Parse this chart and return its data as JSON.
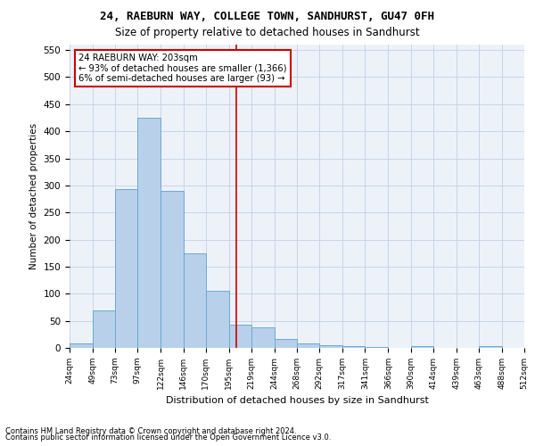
{
  "title1": "24, RAEBURN WAY, COLLEGE TOWN, SANDHURST, GU47 0FH",
  "title2": "Size of property relative to detached houses in Sandhurst",
  "xlabel": "Distribution of detached houses by size in Sandhurst",
  "ylabel": "Number of detached properties",
  "bin_edges": [
    24,
    49,
    73,
    97,
    122,
    146,
    170,
    195,
    219,
    244,
    268,
    292,
    317,
    341,
    366,
    390,
    414,
    439,
    463,
    488,
    512
  ],
  "counts": [
    8,
    70,
    293,
    425,
    290,
    175,
    105,
    43,
    38,
    17,
    8,
    5,
    4,
    2,
    0,
    4,
    0,
    0,
    4,
    0
  ],
  "bar_color": "#b8d0ea",
  "bar_edge_color": "#6aaad4",
  "vline_x": 203,
  "vline_color": "#cc0000",
  "ann_line1": "24 RAEBURN WAY: 203sqm",
  "ann_line2": "← 93% of detached houses are smaller (1,366)",
  "ann_line3": "6% of semi-detached houses are larger (93) →",
  "ann_box_edgecolor": "#cc0000",
  "ann_box_facecolor": "#ffffff",
  "ylim": [
    0,
    560
  ],
  "yticks": [
    0,
    50,
    100,
    150,
    200,
    250,
    300,
    350,
    400,
    450,
    500,
    550
  ],
  "footer1": "Contains HM Land Registry data © Crown copyright and database right 2024.",
  "footer2": "Contains public sector information licensed under the Open Government Licence v3.0.",
  "grid_color": "#c8d4e8",
  "bg_color": "#edf2f9"
}
